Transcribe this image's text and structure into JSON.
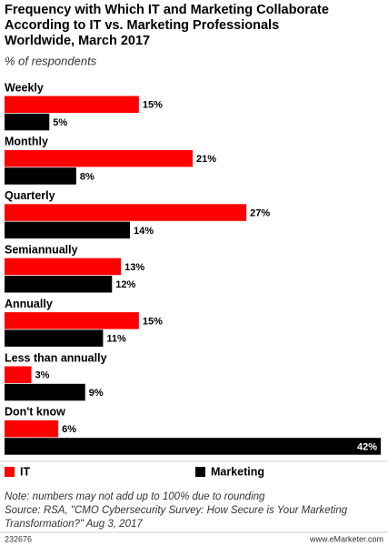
{
  "chart_data": {
    "type": "grouped-hbar",
    "title": [
      "Frequency with Which IT and Marketing Collaborate",
      "According to IT vs. Marketing Professionals",
      "Worldwide, March 2017"
    ],
    "subtitle": "% of respondents",
    "categories": [
      "Weekly",
      "Monthly",
      "Quarterly",
      "Semiannually",
      "Annually",
      "Less than annually",
      "Don't know"
    ],
    "series": [
      {
        "name": "IT",
        "color": "#ff0000",
        "values": [
          15,
          21,
          27,
          13,
          15,
          3,
          6
        ],
        "value_labels": [
          "15%",
          "21%",
          "27%",
          "13%",
          "15%",
          "3%",
          "6%"
        ]
      },
      {
        "name": "Marketing",
        "color": "#000000",
        "values": [
          5,
          8,
          14,
          12,
          11,
          9,
          42
        ],
        "value_labels": [
          "5%",
          "8%",
          "14%",
          "12%",
          "11%",
          "9%",
          "42%"
        ]
      }
    ],
    "notes": [
      "Note: numbers may not add up to 100% due to rounding",
      "Source: RSA, \"CMO Cybersecurity Survey: How Secure is Your Marketing",
      "Transformation?\" Aug 3, 2017"
    ],
    "chart_id": "232676",
    "website": "www.eMarketer.com"
  }
}
